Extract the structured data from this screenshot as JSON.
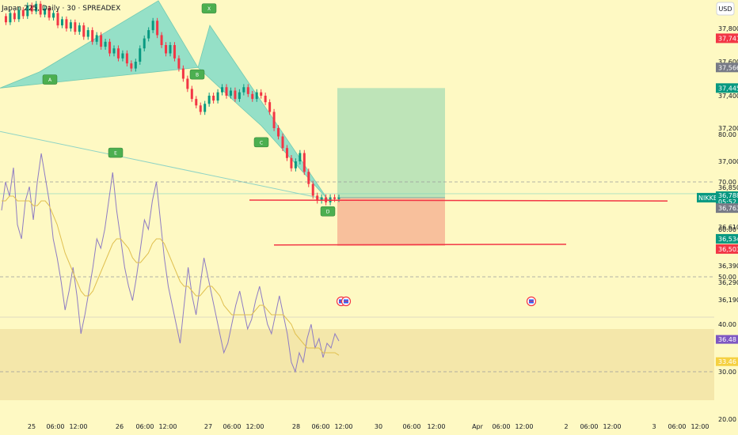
{
  "header": {
    "symbol_title": "Japan 225, Daily · 30 · SPREADEX",
    "currency": "USD"
  },
  "chart_data": [
    {
      "type": "candlestick",
      "title": "Japan 225, Daily · 30 · SPREADEX",
      "currency": "USD",
      "y_ticks": [
        37800,
        37600,
        37400,
        37200,
        37000,
        36850,
        36610,
        36390,
        36290,
        36190
      ],
      "y_tick_labels": [
        "37,800",
        "37,600",
        "37,400",
        "37,200",
        "37,000",
        "36,850",
        "36,610",
        "36,390",
        "36,290",
        "36,190"
      ],
      "x_tick_labels": [
        "25",
        "06:00",
        "12:00",
        "26",
        "06:00",
        "12:00",
        "27",
        "06:00",
        "12:00",
        "28",
        "06:00",
        "12:00",
        "30",
        "06:00",
        "12:00",
        "Apr",
        "06:00",
        "12:00",
        "2",
        "06:00",
        "12:00",
        "3",
        "06:00",
        "12:00"
      ],
      "price_badges": [
        {
          "value": "37,741",
          "color": "#f23645"
        },
        {
          "value": "37,566",
          "color": "#787b86"
        },
        {
          "value": "37,445",
          "color": "#089981"
        },
        {
          "value": "36,788",
          "color": "#089981",
          "label": "NIKKEI",
          "countdown": "05:52"
        },
        {
          "value": "36,763",
          "color": "#787b86"
        },
        {
          "value": "36,534",
          "color": "#089981"
        },
        {
          "value": "36,503",
          "color": "#f23645"
        }
      ],
      "price_series": [
        37880,
        37840,
        37900,
        37860,
        37920,
        37880,
        37950,
        37910,
        37960,
        37890,
        37930,
        37870,
        37900,
        37820,
        37860,
        37800,
        37840,
        37780,
        37820,
        37750,
        37790,
        37720,
        37760,
        37690,
        37720,
        37650,
        37680,
        37620,
        37650,
        37590,
        37560,
        37600,
        37680,
        37740,
        37790,
        37850,
        37760,
        37700,
        37650,
        37700,
        37620,
        37560,
        37500,
        37440,
        37380,
        37340,
        37300,
        37350,
        37400,
        37370,
        37420,
        37450,
        37400,
        37430,
        37380,
        37420,
        37450,
        37410,
        37380,
        37420,
        37400,
        37360,
        37300,
        37200,
        37150,
        37080,
        37020,
        36960,
        37000,
        37050,
        36940,
        36870,
        36800,
        36770,
        36790,
        36760,
        36790,
        36780,
        36788
      ],
      "lines": [
        {
          "name": "upper-line",
          "from": [
            315,
            36773
          ],
          "to": [
            843,
            36768
          ],
          "color": "#f23645"
        },
        {
          "name": "lower-line",
          "from": [
            346,
            36508
          ],
          "to": [
            715,
            36512
          ],
          "color": "#f23645"
        },
        {
          "name": "faint-line",
          "from": [
            0,
            37180
          ],
          "to": [
            415,
            36775
          ],
          "color": "#8fd4c5"
        }
      ],
      "position_tool": {
        "entry": 36788,
        "target": 37445,
        "stop": 36503,
        "x_start": 426,
        "x_end": 562,
        "profit_color": "#b7e1b7",
        "loss_color": "#f7b998"
      },
      "harmonic_pattern": {
        "fill": "#7cdac9",
        "points": [
          [
            0,
            37445
          ],
          [
            50,
            37540
          ],
          [
            200,
            37980
          ],
          [
            250,
            37566
          ],
          [
            265,
            37820
          ],
          [
            305,
            37325
          ],
          [
            330,
            37215
          ],
          [
            415,
            36770
          ]
        ],
        "labels": [
          {
            "text": "A",
            "at": [
              63,
              37495
            ]
          },
          {
            "text": "X",
            "at": [
              264,
              37930
            ]
          },
          {
            "text": "B",
            "at": [
              249,
              37525
            ]
          },
          {
            "text": "C",
            "at": [
              330,
              37115
            ]
          },
          {
            "text": "D",
            "at": [
              414,
              36705
            ]
          },
          {
            "text": "E",
            "at": [
              146,
              37052
            ]
          }
        ]
      },
      "event_markers": [
        "flag-icon",
        "flag-icon"
      ]
    },
    {
      "type": "line",
      "indicator": "RSI",
      "y_ticks": [
        80,
        70,
        60,
        50,
        40,
        30,
        20
      ],
      "y_tick_labels": [
        "80.00",
        "70.00",
        "60.00",
        "50.00",
        "40.00",
        "30.00",
        "20.00"
      ],
      "band": [
        30,
        70
      ],
      "mid_line": 50,
      "badges": [
        {
          "value": "36.48",
          "color": "#7e57c2"
        },
        {
          "value": "33.46",
          "color": "#f5d142"
        }
      ],
      "series": [
        {
          "name": "RSI",
          "color": "#8e7cc3",
          "values": [
            64,
            70,
            67,
            73,
            61,
            58,
            66,
            69,
            62,
            70,
            76,
            71,
            66,
            58,
            54,
            49,
            43,
            47,
            52,
            46,
            38,
            42,
            47,
            52,
            58,
            56,
            60,
            66,
            72,
            64,
            58,
            52,
            48,
            45,
            50,
            56,
            62,
            60,
            66,
            70,
            62,
            54,
            48,
            44,
            40,
            36,
            44,
            52,
            46,
            42,
            48,
            54,
            50,
            46,
            42,
            38,
            34,
            36,
            40,
            44,
            47,
            43,
            39,
            41,
            45,
            48,
            44,
            40,
            38,
            42,
            46,
            42,
            38,
            32,
            30,
            34,
            32,
            37,
            40,
            35,
            37,
            33,
            36,
            35,
            38,
            36.48
          ]
        },
        {
          "name": "RSI-based MA",
          "color": "#e0c050",
          "values": [
            66,
            66,
            67,
            67,
            66,
            66,
            66,
            66,
            65,
            65,
            66,
            66,
            65,
            63,
            61,
            58,
            55,
            53,
            51,
            49,
            47,
            46,
            46,
            47,
            49,
            51,
            53,
            55,
            57,
            58,
            58,
            57,
            56,
            54,
            53,
            53,
            54,
            55,
            57,
            58,
            58,
            57,
            55,
            53,
            51,
            49,
            48,
            48,
            47,
            46,
            46,
            47,
            48,
            48,
            47,
            46,
            44,
            43,
            42,
            42,
            42,
            42,
            42,
            42,
            43,
            44,
            44,
            43,
            42,
            42,
            42,
            42,
            41,
            40,
            38,
            37,
            36,
            35,
            35,
            35,
            35,
            34,
            34,
            34,
            34,
            33.46
          ]
        }
      ]
    }
  ]
}
